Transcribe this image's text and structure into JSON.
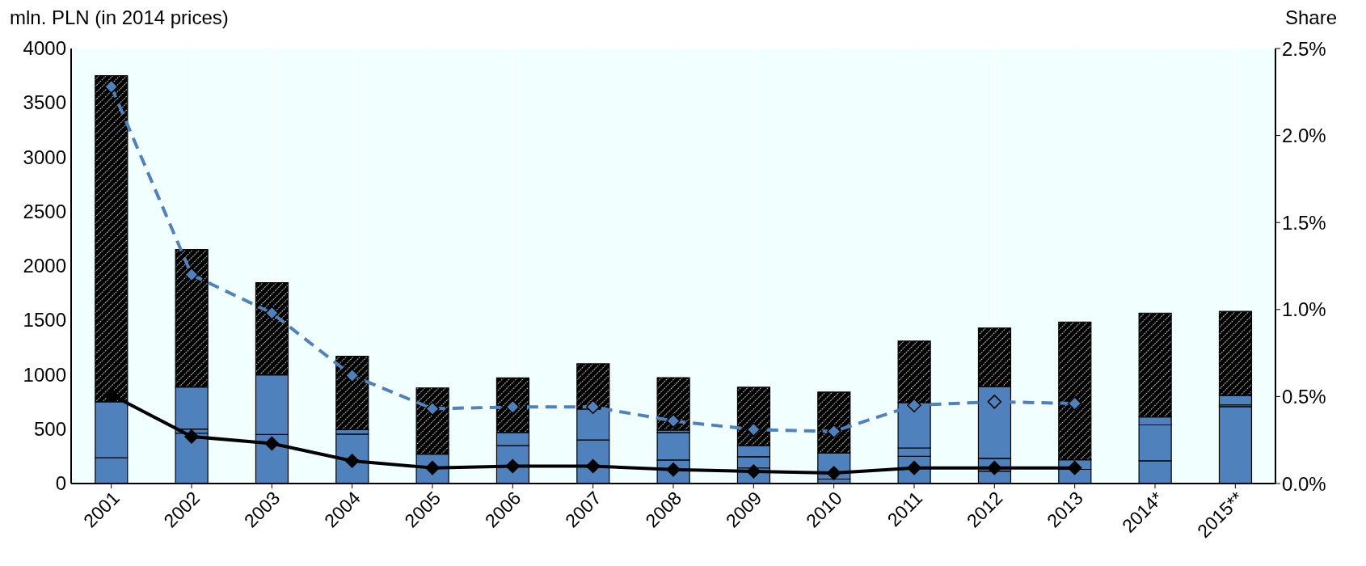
{
  "chart_data": {
    "type": "bar",
    "stacked": true,
    "ylabel": "mln. PLN (in 2014 prices)",
    "y2label": "Share",
    "categories": [
      "2001",
      "2002",
      "2003",
      "2004",
      "2005",
      "2006",
      "2007",
      "2008",
      "2009",
      "2010",
      "2011",
      "2012",
      "2013",
      "2014*",
      "2015**"
    ],
    "series": [
      {
        "color": "#4f81bd",
        "values": [
          238,
          463,
          450,
          454,
          270,
          349,
          400,
          216,
          143,
          41,
          251,
          114,
          130,
          209,
          707
        ]
      },
      {
        "color": "#4f81bd",
        "values": [
          514,
          38,
          549,
          41,
          null,
          120,
          285,
          253,
          104,
          241,
          76,
          118,
          89,
          330,
          16
        ]
      },
      {
        "color": "#4f81bd",
        "values": [
          null,
          387,
          null,
          null,
          null,
          null,
          null,
          23,
          102,
          null,
          418,
          659,
          null,
          73,
          86
        ]
      },
      {
        "color": "#000000",
        "values": [
          2998,
          1263,
          847,
          675,
          609,
          502,
          416,
          482,
          536,
          559,
          565,
          540,
          1266,
          955,
          774
        ]
      },
      {
        "type": "line",
        "axis": "y2",
        "color": "#4f81bd",
        "line_style": "dashed",
        "values": [
          2.28,
          1.2,
          0.98,
          0.62,
          0.43,
          0.44,
          0.44,
          0.36,
          0.31,
          0.3,
          0.45,
          0.47,
          0.46,
          null,
          null
        ]
      },
      {
        "type": "line",
        "axis": "y2",
        "color": "#000000",
        "line_style": "solid",
        "values": [
          0.51,
          0.27,
          0.23,
          0.13,
          0.09,
          0.1,
          0.1,
          0.08,
          0.07,
          0.06,
          0.09,
          0.09,
          0.09,
          null,
          null
        ]
      }
    ],
    "ylim": [
      0,
      4000
    ],
    "yticks": [
      0,
      500,
      1000,
      1500,
      2000,
      2500,
      3000,
      3500,
      4000
    ],
    "y2lim": [
      0,
      2.5
    ],
    "y2ticks": [
      {
        "value": 0,
        "label": "0.0%"
      },
      {
        "value": 0.5,
        "label": "0.5%"
      },
      {
        "value": 1,
        "label": "1.0%"
      },
      {
        "value": 1.5,
        "label": "1.5%"
      },
      {
        "value": 2,
        "label": "2.0%"
      },
      {
        "value": 2.5,
        "label": "2.5%"
      }
    ],
    "grid": true,
    "marker": "diamond"
  }
}
